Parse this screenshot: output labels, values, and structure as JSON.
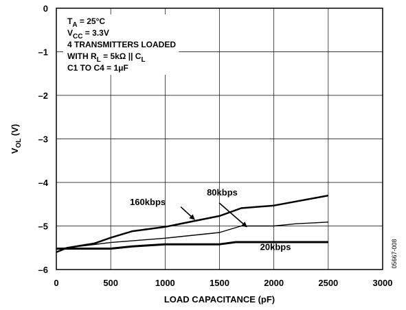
{
  "chart_data": {
    "type": "line",
    "title": "",
    "xlabel": "LOAD CAPACITANCE (pF)",
    "ylabel": {
      "main": "V",
      "sub": "OL",
      "unit": " (V)"
    },
    "xlim": [
      0,
      3000
    ],
    "ylim": [
      -6,
      0
    ],
    "xticks": [
      0,
      500,
      1000,
      1500,
      2000,
      2500,
      3000
    ],
    "yticks": [
      0,
      -1,
      -2,
      -3,
      -4,
      -5,
      -6
    ],
    "grid": true,
    "series": [
      {
        "name": "160kbps",
        "x": [
          0,
          100,
          350,
          500,
          700,
          1000,
          1500,
          1700,
          2000,
          2500
        ],
        "y": [
          -5.6,
          -5.5,
          -5.4,
          -5.27,
          -5.12,
          -5.02,
          -4.77,
          -4.59,
          -4.53,
          -4.3
        ],
        "stroke_width": 2.5
      },
      {
        "name": "80kbps",
        "x": [
          0,
          100,
          500,
          1000,
          1500,
          1700,
          2000,
          2200,
          2500
        ],
        "y": [
          -5.52,
          -5.5,
          -5.38,
          -5.28,
          -5.15,
          -5.0,
          -5.0,
          -4.95,
          -4.91
        ],
        "stroke_width": 1.4
      },
      {
        "name": "20kbps",
        "x": [
          0,
          100,
          500,
          700,
          1000,
          1500,
          1650,
          2000,
          2500
        ],
        "y": [
          -5.52,
          -5.52,
          -5.52,
          -5.47,
          -5.42,
          -5.42,
          -5.37,
          -5.37,
          -5.37
        ],
        "stroke_width": 3
      }
    ],
    "annotations": {
      "lines": [
        [
          {
            "t": "T"
          },
          {
            "t": "A",
            "sub": true
          },
          {
            "t": " = 25°C"
          }
        ],
        [
          {
            "t": "V"
          },
          {
            "t": "CC",
            "sub": true
          },
          {
            "t": " = 3.3V"
          }
        ],
        [
          {
            "t": "4 TRANSMITTERS LOADED"
          }
        ],
        [
          {
            "t": "WITH R"
          },
          {
            "t": "L",
            "sub": true
          },
          {
            "t": " = 5kΩ || C"
          },
          {
            "t": "L",
            "sub": true
          }
        ],
        [
          {
            "t": "C1 TO C4 = 1μF"
          }
        ]
      ],
      "series_labels": [
        {
          "text": "160kbps",
          "x": 1270,
          "y": -4.85
        },
        {
          "text": "80kbps",
          "x": 1750,
          "y": -5.02
        },
        {
          "text": "20kbps",
          "x": 2000,
          "y": -5.37
        }
      ],
      "figure_id": "05667-008"
    }
  }
}
